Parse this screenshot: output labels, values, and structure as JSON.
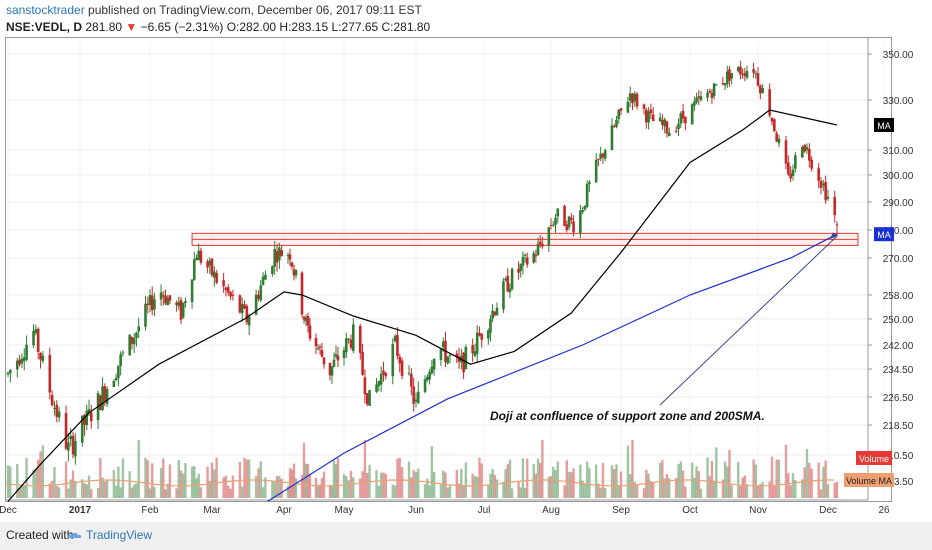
{
  "header": {
    "author": "sanstocktrader",
    "published_text": " published on TradingView.com, December 06, 2017 09:11 EST",
    "symbol": "NSE:VEDL, D",
    "last": "281.80",
    "change_arrow": "▼",
    "change": "−6.65 (−2.31%)",
    "ohlc": "O:282.00 H:283.15 L:277.65 C:281.80"
  },
  "footer": {
    "created_with": "Created with",
    "brand": "TradingView"
  },
  "colors": {
    "up": "#2e7d32",
    "down": "#c62828",
    "sma50": "#000000",
    "sma200": "#1a2fd6",
    "zone": "#e53935",
    "volume_ma": "#f0a070",
    "annotation_arrow": "#3b4a8a"
  },
  "chart_data": {
    "type": "candlestick",
    "y_axis_ticks": [
      "350.00",
      "330.00",
      "310.00",
      "300.00",
      "290.00",
      "280.00",
      "270.00",
      "258.00",
      "250.00",
      "242.00",
      "234.50",
      "226.50",
      "218.50",
      "210.50",
      "203.50"
    ],
    "x_axis_ticks": [
      "Dec",
      "2017",
      "Feb",
      "Mar",
      "Apr",
      "May",
      "Jun",
      "Jul",
      "Aug",
      "Sep",
      "Oct",
      "Nov",
      "Dec",
      "26"
    ],
    "price_badges": [
      {
        "label": "MA",
        "value": 320,
        "color": "#000000"
      },
      {
        "label": "MA",
        "value": 278.5,
        "color": "#1a2fd6"
      }
    ],
    "volume_badges": [
      {
        "label": "Volume",
        "color": "#e53935"
      },
      {
        "label": "Volume MA",
        "color": "#f0a070"
      }
    ],
    "support_zone": [
      274.5,
      278.8
    ],
    "annotation": "Doji at confluence of support zone and 200SMA.",
    "anchors": [
      {
        "date": "2016-12-01",
        "price": 233
      },
      {
        "date": "2016-12-12",
        "price": 246
      },
      {
        "date": "2016-12-20",
        "price": 226
      },
      {
        "date": "2016-12-27",
        "price": 212
      },
      {
        "date": "2017-01-10",
        "price": 226
      },
      {
        "date": "2017-01-25",
        "price": 245
      },
      {
        "date": "2017-02-05",
        "price": 260
      },
      {
        "date": "2017-02-15",
        "price": 252
      },
      {
        "date": "2017-02-22",
        "price": 272
      },
      {
        "date": "2017-03-08",
        "price": 258
      },
      {
        "date": "2017-03-16",
        "price": 250
      },
      {
        "date": "2017-03-28",
        "price": 272
      },
      {
        "date": "2017-04-04",
        "price": 272
      },
      {
        "date": "2017-04-12",
        "price": 248
      },
      {
        "date": "2017-04-24",
        "price": 234
      },
      {
        "date": "2017-05-05",
        "price": 245
      },
      {
        "date": "2017-05-12",
        "price": 225
      },
      {
        "date": "2017-05-23",
        "price": 242
      },
      {
        "date": "2017-06-01",
        "price": 224
      },
      {
        "date": "2017-06-10",
        "price": 242
      },
      {
        "date": "2017-06-20",
        "price": 235
      },
      {
        "date": "2017-06-27",
        "price": 242
      },
      {
        "date": "2017-07-12",
        "price": 262
      },
      {
        "date": "2017-07-25",
        "price": 272
      },
      {
        "date": "2017-08-03",
        "price": 285
      },
      {
        "date": "2017-08-12",
        "price": 282
      },
      {
        "date": "2017-08-22",
        "price": 305
      },
      {
        "date": "2017-09-05",
        "price": 333
      },
      {
        "date": "2017-09-14",
        "price": 322
      },
      {
        "date": "2017-09-22",
        "price": 318
      },
      {
        "date": "2017-10-06",
        "price": 330
      },
      {
        "date": "2017-10-20",
        "price": 342
      },
      {
        "date": "2017-10-30",
        "price": 344
      },
      {
        "date": "2017-11-06",
        "price": 326
      },
      {
        "date": "2017-11-14",
        "price": 298
      },
      {
        "date": "2017-11-20",
        "price": 314
      },
      {
        "date": "2017-11-30",
        "price": 294
      },
      {
        "date": "2017-12-05",
        "price": 282
      }
    ],
    "sma50_path": [
      {
        "date": "2016-12-01",
        "price": 198
      },
      {
        "date": "2016-12-15",
        "price": 208
      },
      {
        "date": "2017-01-05",
        "price": 222
      },
      {
        "date": "2017-02-05",
        "price": 236
      },
      {
        "date": "2017-03-15",
        "price": 250
      },
      {
        "date": "2017-04-01",
        "price": 259
      },
      {
        "date": "2017-04-10",
        "price": 258
      },
      {
        "date": "2017-05-05",
        "price": 251
      },
      {
        "date": "2017-06-01",
        "price": 245
      },
      {
        "date": "2017-06-25",
        "price": 236
      },
      {
        "date": "2017-07-15",
        "price": 240
      },
      {
        "date": "2017-08-10",
        "price": 252
      },
      {
        "date": "2017-09-01",
        "price": 272
      },
      {
        "date": "2017-10-01",
        "price": 305
      },
      {
        "date": "2017-10-25",
        "price": 318
      },
      {
        "date": "2017-11-06",
        "price": 326
      },
      {
        "date": "2017-12-05",
        "price": 320
      }
    ],
    "sma200_path": [
      {
        "date": "2017-03-25",
        "price": 198
      },
      {
        "date": "2017-05-01",
        "price": 211
      },
      {
        "date": "2017-06-15",
        "price": 226
      },
      {
        "date": "2017-08-15",
        "price": 242
      },
      {
        "date": "2017-10-01",
        "price": 258
      },
      {
        "date": "2017-11-15",
        "price": 270
      },
      {
        "date": "2017-12-05",
        "price": 278.5
      }
    ],
    "volume_ma_level": 0.26
  }
}
